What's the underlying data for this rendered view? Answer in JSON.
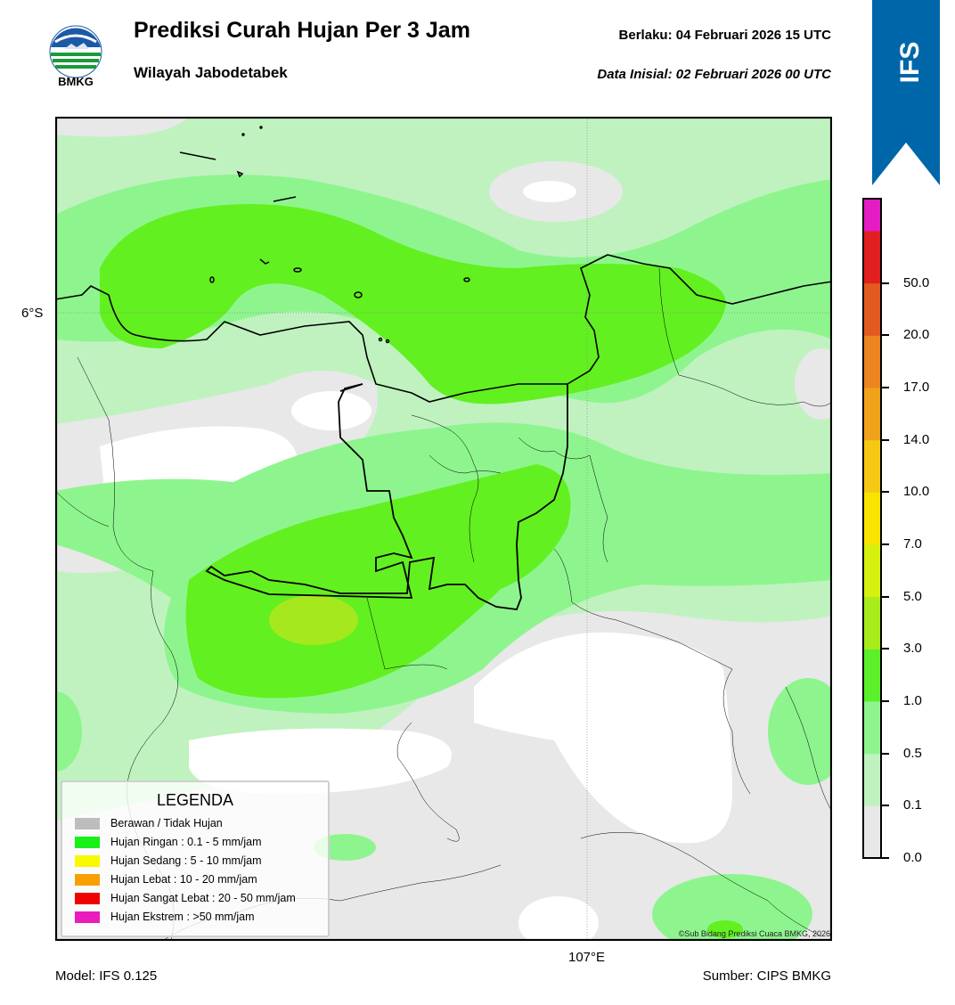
{
  "header": {
    "logo_text": "BMKG",
    "title": "Prediksi Curah Hujan Per 3 Jam",
    "subtitle": "Wilayah Jabodetabek",
    "valid": "Berlaku:  04 Februari 2026 15 UTC",
    "init": "Data Inisial:  02 Februari 2026 00 UTC"
  },
  "ribbon": {
    "label": "IFS",
    "color": "#0066aa"
  },
  "map": {
    "lat_label": "6°S",
    "lon_label": "107°E",
    "copyright": "©Sub Bidang Prediksi Cuaca BMKG, 2026"
  },
  "legend": {
    "title": "LEGENDA",
    "items": [
      {
        "label": "Berawan / Tidak Hujan",
        "color": "#bdbdbd"
      },
      {
        "label": "Hujan Ringan : 0.1 - 5 mm/jam",
        "color": "#18f018"
      },
      {
        "label": "Hujan Sedang : 5 - 10 mm/jam",
        "color": "#f8f800"
      },
      {
        "label": "Hujan Lebat : 10 - 20 mm/jam",
        "color": "#f8a000"
      },
      {
        "label": "Hujan Sangat Lebat : 20 - 50 mm/jam",
        "color": "#f00000"
      },
      {
        "label": "Hujan Ekstrem : >50 mm/jam",
        "color": "#ea1cbc"
      }
    ]
  },
  "colorbar": {
    "labels": [
      "0.0",
      "0.1",
      "0.5",
      "1.0",
      "3.0",
      "5.0",
      "7.0",
      "10.0",
      "14.0",
      "17.0",
      "20.0",
      "50.0"
    ],
    "colors": [
      "#e8e8e8",
      "#bff2bf",
      "#8ef58e",
      "#5cf02a",
      "#a8ec1c",
      "#d6f010",
      "#f8e400",
      "#f5c814",
      "#f0a21a",
      "#ec8520",
      "#e35a20",
      "#e21f1f",
      "#e41cc4"
    ]
  },
  "footer": {
    "model": "Model: IFS 0.125",
    "source": "Sumber: CIPS BMKG"
  }
}
